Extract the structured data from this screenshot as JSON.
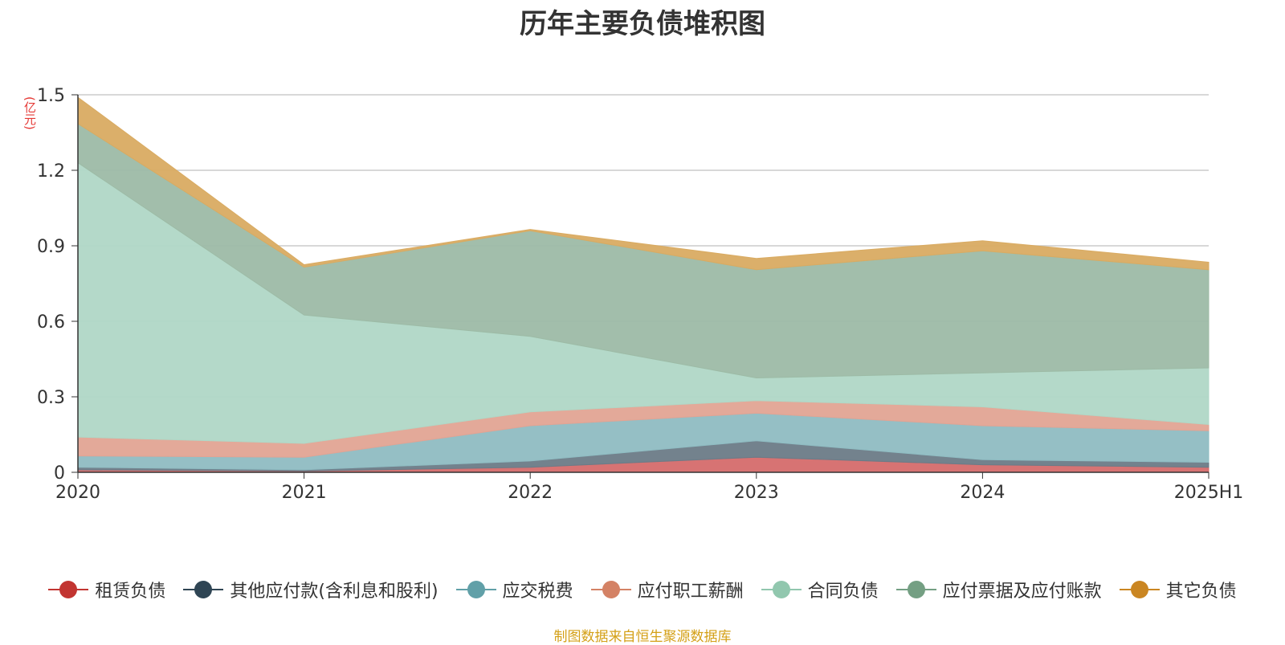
{
  "chart_data": {
    "type": "area",
    "title": "历年主要负债堆积图",
    "ylabel": "(亿元)",
    "xlabel": "",
    "stacked": true,
    "categories": [
      "2020",
      "2021",
      "2022",
      "2023",
      "2024",
      "2025H1"
    ],
    "ylim": [
      0,
      1.5
    ],
    "yticks": [
      "0",
      "0.3",
      "0.6",
      "0.9",
      "1.2",
      "1.5"
    ],
    "grid": true,
    "legend_position": "bottom",
    "series": [
      {
        "name": "租赁负债",
        "color": "#d56b6b",
        "values": [
          0.01,
          0.005,
          0.02,
          0.06,
          0.03,
          0.02
        ]
      },
      {
        "name": "其他应付款(含利息和股利)",
        "color": "#6b7b87",
        "values": [
          0.01,
          0.005,
          0.025,
          0.065,
          0.02,
          0.02
        ]
      },
      {
        "name": "应交税费",
        "color": "#8fbcc2",
        "values": [
          0.045,
          0.05,
          0.14,
          0.11,
          0.135,
          0.125
        ]
      },
      {
        "name": "应付职工薪酬",
        "color": "#e2a494",
        "values": [
          0.075,
          0.055,
          0.055,
          0.05,
          0.075,
          0.025
        ]
      },
      {
        "name": "合同负债",
        "color": "#b0d7c6",
        "values": [
          1.09,
          0.51,
          0.3,
          0.09,
          0.135,
          0.225
        ]
      },
      {
        "name": "应付票据及应付账款",
        "color": "#9dbba6",
        "values": [
          0.155,
          0.19,
          0.42,
          0.43,
          0.485,
          0.39
        ]
      },
      {
        "name": "其它负债",
        "color": "#d9ab62",
        "values": [
          0.105,
          0.01,
          0.005,
          0.045,
          0.04,
          0.03
        ]
      }
    ]
  },
  "legend_colors": {
    "租赁负债": "#c23531",
    "其他应付款(含利息和股利)": "#2f4554",
    "应交税费": "#61a0a8",
    "应付职工薪酬": "#d48265",
    "合同负债": "#91c7ae",
    "应付票据及应付账款": "#749f83",
    "其它负债": "#ca8622"
  },
  "source_note": "制图数据来自恒生聚源数据库"
}
